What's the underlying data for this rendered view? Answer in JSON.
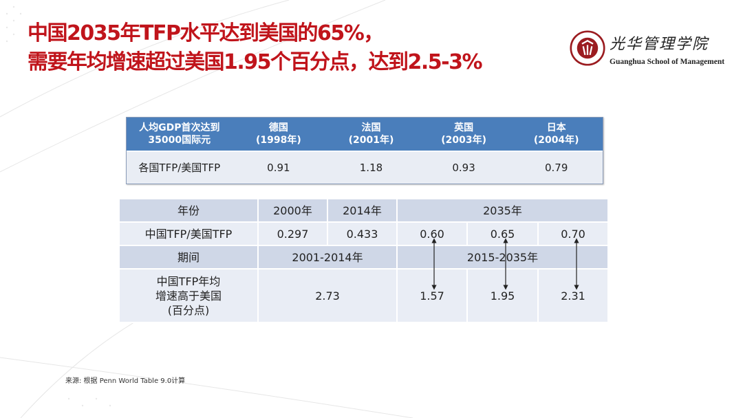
{
  "title": {
    "line1": "中国2035年TFP水平达到美国的65%，",
    "line2": "需要年均增速超过美国1.95个百分点，达到2.5-3%"
  },
  "logo": {
    "chinese": "光华管理学院",
    "english": "Guanghua School of Management",
    "seal_text": "PEKING UNIVERSITY 1898"
  },
  "colors": {
    "title": "#c0141b",
    "table1_header": "#4a7ebb",
    "row_light": "#e9edf5",
    "row_dark": "#cfd7e7"
  },
  "table1": {
    "header": {
      "label": "人均GDP首次达到\n35000国际元",
      "columns": [
        {
          "country": "德国",
          "year": "(1998年)"
        },
        {
          "country": "法国",
          "year": "(2001年)"
        },
        {
          "country": "英国",
          "year": "(2003年)"
        },
        {
          "country": "日本",
          "year": "(2004年)"
        }
      ]
    },
    "row": {
      "label": "各国TFP/美国TFP",
      "values": [
        "0.91",
        "1.18",
        "0.93",
        "0.79"
      ]
    }
  },
  "table2": {
    "year_row": {
      "label": "年份",
      "values": [
        "2000年",
        "2014年",
        "2035年"
      ]
    },
    "ratio_row": {
      "label": "中国TFP/美国TFP",
      "values": [
        "0.297",
        "0.433",
        "0.60",
        "0.65",
        "0.70"
      ]
    },
    "period_row": {
      "label": "期间",
      "values": [
        "2001-2014年",
        "2015-2035年"
      ]
    },
    "growth_row": {
      "label": "中国TFP年均\n增速高于美国\n(百分点)",
      "values": [
        "2.73",
        "1.57",
        "1.95",
        "2.31"
      ]
    }
  },
  "source": "来源: 根据 Penn World  Table  9.0计算"
}
